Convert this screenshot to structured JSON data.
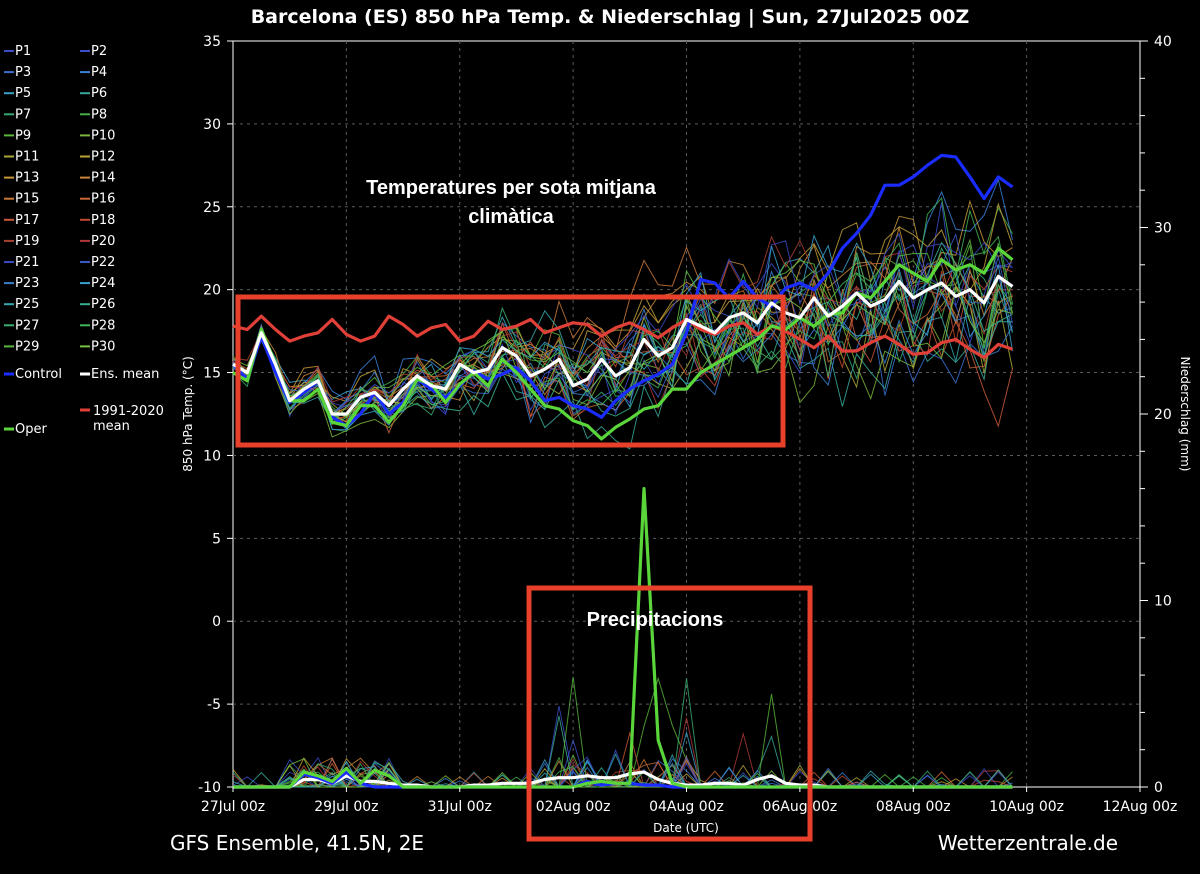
{
  "chart_data": {
    "type": "line",
    "title": "Barcelona  (ES)  850 hPa Temp. & Niederschlag | Sun, 27Jul2025 00Z",
    "ylabel_left": "850 hPa Temp. (°C)",
    "ylabel_right": "Niederschlag (mm)",
    "xlabel": "Date (UTC)",
    "ylim_left": [
      -10,
      35
    ],
    "ylim_right": [
      0,
      40
    ],
    "yticks_left": [
      35,
      30,
      25,
      20,
      15,
      10,
      5,
      0,
      -5,
      -10
    ],
    "yticks_right": [
      40,
      30,
      20,
      10,
      0
    ],
    "xlim_hours": [
      0,
      384
    ],
    "x_step_hours": 6,
    "x_tick_labels": [
      "27Jul 00z",
      "29Jul 00z",
      "31Jul 00z",
      "02Aug 00z",
      "04Aug 00z",
      "06Aug 00z",
      "08Aug 00z",
      "10Aug 00z",
      "12Aug 00z"
    ],
    "grid": true,
    "legend": [
      {
        "name": "P1",
        "color": "#3a4ec8"
      },
      {
        "name": "P2",
        "color": "#3a4ec8"
      },
      {
        "name": "P3",
        "color": "#3a6fd0"
      },
      {
        "name": "P4",
        "color": "#3a7fd8"
      },
      {
        "name": "P5",
        "color": "#38a0c8"
      },
      {
        "name": "P6",
        "color": "#38a89a"
      },
      {
        "name": "P7",
        "color": "#35a870"
      },
      {
        "name": "P8",
        "color": "#45b04a"
      },
      {
        "name": "P9",
        "color": "#5ab83a"
      },
      {
        "name": "P10",
        "color": "#7ab43a"
      },
      {
        "name": "P11",
        "color": "#a8a838"
      },
      {
        "name": "P12",
        "color": "#c0a038"
      },
      {
        "name": "P13",
        "color": "#c89838"
      },
      {
        "name": "P14",
        "color": "#c88838"
      },
      {
        "name": "P15",
        "color": "#c87838"
      },
      {
        "name": "P16",
        "color": "#c86838"
      },
      {
        "name": "P17",
        "color": "#c85838"
      },
      {
        "name": "P18",
        "color": "#c04830"
      },
      {
        "name": "P19",
        "color": "#a84030"
      },
      {
        "name": "P20",
        "color": "#b03838"
      },
      {
        "name": "P21",
        "color": "#3848c0"
      },
      {
        "name": "P22",
        "color": "#3858c8"
      },
      {
        "name": "P23",
        "color": "#3a80d0"
      },
      {
        "name": "P24",
        "color": "#38a0d0"
      },
      {
        "name": "P25",
        "color": "#38a8b0"
      },
      {
        "name": "P26",
        "color": "#38b090"
      },
      {
        "name": "P27",
        "color": "#38b070"
      },
      {
        "name": "P28",
        "color": "#40b458"
      },
      {
        "name": "P29",
        "color": "#58b840"
      },
      {
        "name": "P30",
        "color": "#78c040"
      },
      {
        "name": "Control",
        "color": "#1a2cff"
      },
      {
        "name": "Ens. mean",
        "color": "#ffffff"
      },
      {
        "name": "Oper",
        "color": "#5ad63a"
      },
      {
        "name": "1991-2020 mean",
        "color": "#e04038"
      }
    ],
    "series_main": [
      {
        "name": "Control",
        "color": "#1a2cff",
        "axis": "left",
        "values": [
          15.5,
          14.6,
          17.2,
          15.0,
          13.2,
          13.8,
          14.5,
          12.3,
          11.8,
          12.5,
          13.8,
          12.5,
          13.2,
          14.6,
          14.0,
          13.5,
          14.2,
          15.1,
          14.6,
          14.9,
          15.3,
          14.5,
          13.3,
          13.5,
          13.0,
          12.8,
          12.3,
          13.3,
          14.0,
          14.5,
          14.9,
          15.5,
          17.4,
          20.6,
          20.4,
          19.5,
          20.5,
          19.5,
          19.0,
          20.1,
          20.4,
          20.0,
          21.0,
          22.5,
          23.4,
          24.5,
          26.3,
          26.3,
          26.8,
          27.5,
          28.1,
          28.0,
          26.8,
          25.5,
          26.8,
          26.2
        ]
      },
      {
        "name": "Oper",
        "color": "#5ad63a",
        "axis": "left",
        "values": [
          15.0,
          14.5,
          17.6,
          15.5,
          13.3,
          13.3,
          14.0,
          12.0,
          11.8,
          13.0,
          13.0,
          12.0,
          13.0,
          14.6,
          14.3,
          13.2,
          14.3,
          15.0,
          14.2,
          15.8,
          15.0,
          14.0,
          13.0,
          12.8,
          12.1,
          11.8,
          11.0,
          11.7,
          12.2,
          12.8,
          13.0,
          14.0,
          14.0,
          15.0,
          15.5,
          16.0,
          16.5,
          17.0,
          17.8,
          17.6,
          18.3,
          17.8,
          18.5,
          18.6,
          19.8,
          19.5,
          20.5,
          21.5,
          21.0,
          20.5,
          21.8,
          21.2,
          21.5,
          21.0,
          22.5,
          21.8
        ]
      },
      {
        "name": "Ens. mean",
        "color": "#ffffff",
        "axis": "left",
        "values": [
          15.5,
          15.0,
          17.4,
          15.5,
          13.3,
          14.0,
          14.5,
          12.5,
          12.5,
          13.5,
          13.8,
          13.0,
          14.0,
          14.8,
          14.2,
          14.0,
          15.5,
          15.0,
          15.2,
          16.5,
          16.0,
          14.8,
          15.2,
          15.8,
          14.2,
          14.6,
          15.8,
          14.8,
          15.3,
          17.0,
          16.0,
          16.5,
          18.2,
          17.8,
          17.4,
          18.3,
          18.6,
          18.0,
          19.2,
          18.6,
          18.3,
          19.5,
          18.4,
          19.0,
          19.8,
          19.0,
          19.4,
          20.5,
          19.5,
          20.0,
          20.4,
          19.6,
          20.0,
          19.2,
          20.8,
          20.2
        ]
      },
      {
        "name": "1991-2020 mean",
        "color": "#e04038",
        "axis": "left",
        "values": [
          17.8,
          17.6,
          18.4,
          17.6,
          16.9,
          17.2,
          17.4,
          18.2,
          17.3,
          16.9,
          17.2,
          18.4,
          17.9,
          17.2,
          17.7,
          17.9,
          16.9,
          17.2,
          18.1,
          17.6,
          17.8,
          18.2,
          17.4,
          17.7,
          18.0,
          17.9,
          17.2,
          17.7,
          18.0,
          17.6,
          17.1,
          17.7,
          18.2,
          17.6,
          17.3,
          17.8,
          18.0,
          17.3,
          17.8,
          17.5,
          17.0,
          16.5,
          17.2,
          16.3,
          16.3,
          16.8,
          17.2,
          16.7,
          16.1,
          16.2,
          16.8,
          17.0,
          16.4,
          15.9,
          16.7,
          16.4
        ]
      },
      {
        "name": "Precip Oper",
        "color": "#5ad63a",
        "axis": "right",
        "values": [
          0,
          0,
          0,
          0,
          0,
          0.8,
          0.6,
          0.3,
          1.0,
          0.2,
          0.9,
          0.6,
          0,
          0,
          0,
          0,
          0,
          0,
          0,
          0,
          0,
          0,
          0,
          0,
          0,
          0.2,
          0.3,
          0.2,
          0.2,
          16.0,
          2.5,
          0.2,
          0,
          0,
          0,
          0,
          0,
          0,
          0,
          0,
          0,
          0,
          0,
          0,
          0,
          0,
          0,
          0,
          0,
          0,
          0,
          0,
          0,
          0,
          0,
          0
        ]
      },
      {
        "name": "Precip Control",
        "color": "#1a2cff",
        "axis": "right",
        "values": [
          0,
          0,
          0,
          0,
          0,
          0.7,
          0.5,
          0.2,
          0.8,
          0.2,
          0,
          0,
          0,
          0,
          0,
          0,
          0,
          0,
          0,
          0,
          0,
          0,
          0,
          0,
          0,
          0.3,
          0.1,
          0.2,
          0.2,
          0.1,
          0.1,
          0,
          0,
          0,
          0,
          0,
          0,
          0,
          0,
          0,
          0,
          0,
          0,
          0,
          0,
          0,
          0,
          0,
          0,
          0,
          0,
          0,
          0,
          0,
          0,
          0
        ]
      },
      {
        "name": "Precip Ens. mean",
        "color": "#ffffff",
        "axis": "right",
        "values": [
          0,
          0,
          0,
          0,
          0,
          0.4,
          0.4,
          0.2,
          0.6,
          0.3,
          0.3,
          0.2,
          0.1,
          0.1,
          0,
          0,
          0,
          0.1,
          0.1,
          0.2,
          0.2,
          0.2,
          0.4,
          0.5,
          0.5,
          0.6,
          0.5,
          0.5,
          0.7,
          0.8,
          0.4,
          0.2,
          0.1,
          0.1,
          0.2,
          0.2,
          0.1,
          0.4,
          0.6,
          0.2,
          0.1,
          0.1,
          0,
          0,
          0,
          0,
          0,
          0,
          0,
          0,
          0,
          0,
          0,
          0,
          0,
          0
        ]
      }
    ],
    "annotations": [
      {
        "text": "Temperatures per sota mitjana",
        "box_color": "#e8402a"
      },
      {
        "text": "climàtica"
      },
      {
        "text": "Precipitacions",
        "box_color": "#e8402a"
      }
    ]
  },
  "footer": {
    "left": "GFS Ensemble, 41.5N, 2E",
    "right": "Wetterzentrale.de"
  }
}
